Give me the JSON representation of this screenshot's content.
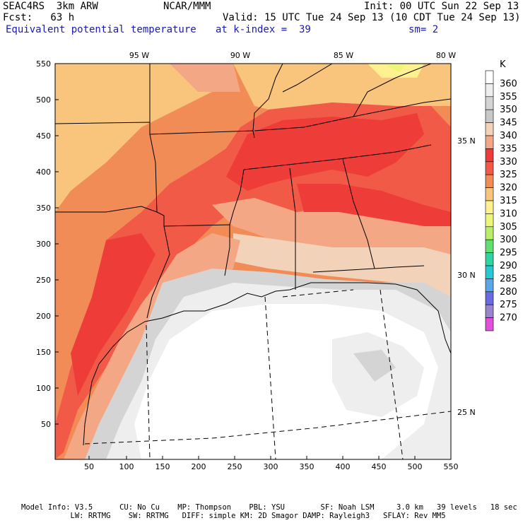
{
  "header": {
    "model": "SEAC4RS  3km ARW",
    "center": "NCAR/MMM",
    "init": "Init: 00 UTC Sun 22 Sep 13",
    "fcst": "Fcst:   63 h",
    "valid": "Valid: 15 UTC Tue 24 Sep 13 (10 CDT Tue 24 Sep 13)",
    "field": "Equivalent potential temperature",
    "level": "at k-index =  39",
    "smooth": "sm= 2"
  },
  "axes": {
    "x_ticks": [
      50,
      100,
      150,
      200,
      250,
      300,
      350,
      400,
      450,
      500,
      550
    ],
    "y_ticks": [
      50,
      100,
      150,
      200,
      250,
      300,
      350,
      400,
      450,
      500,
      550
    ],
    "lon_labels": [
      "95 W",
      "90 W",
      "85 W",
      "80 W"
    ],
    "lat_labels": [
      "35 N",
      "30 N",
      "25 N"
    ]
  },
  "colorbar": {
    "unit": "K",
    "levels": [
      {
        "value": "360",
        "color": "#ffffff"
      },
      {
        "value": "355",
        "color": "#eeeeee"
      },
      {
        "value": "350",
        "color": "#d4d4d4"
      },
      {
        "value": "345",
        "color": "#c8c8c8"
      },
      {
        "value": "340",
        "color": "#f2d2b8"
      },
      {
        "value": "335",
        "color": "#f4a784"
      },
      {
        "value": "330",
        "color": "#ee3c38"
      },
      {
        "value": "325",
        "color": "#f25a48"
      },
      {
        "value": "320",
        "color": "#f28c56"
      },
      {
        "value": "315",
        "color": "#f9c57c"
      },
      {
        "value": "310",
        "color": "#fff090"
      },
      {
        "value": "305",
        "color": "#ecf77a"
      },
      {
        "value": "300",
        "color": "#b8ee6a"
      },
      {
        "value": "295",
        "color": "#60e070"
      },
      {
        "value": "290",
        "color": "#30d4a0"
      },
      {
        "value": "285",
        "color": "#28c8d2"
      },
      {
        "value": "280",
        "color": "#5aa6e6"
      },
      {
        "value": "275",
        "color": "#6a6ae2"
      },
      {
        "value": "270",
        "color": "#9a84cc"
      },
      {
        "value": "",
        "color": "#e050d8"
      }
    ]
  },
  "footer": {
    "line1": "Model Info: V3.5      CU: No Cu    MP: Thompson    PBL: YSU        SF: Noah LSM     3.0 km   39 levels   18 sec",
    "line2": "           LW: RRTMG    SW: RRTMG   DIFF: simple KM: 2D Smagor DAMP: Rayleigh3   SFLAY: Rev MM5"
  }
}
